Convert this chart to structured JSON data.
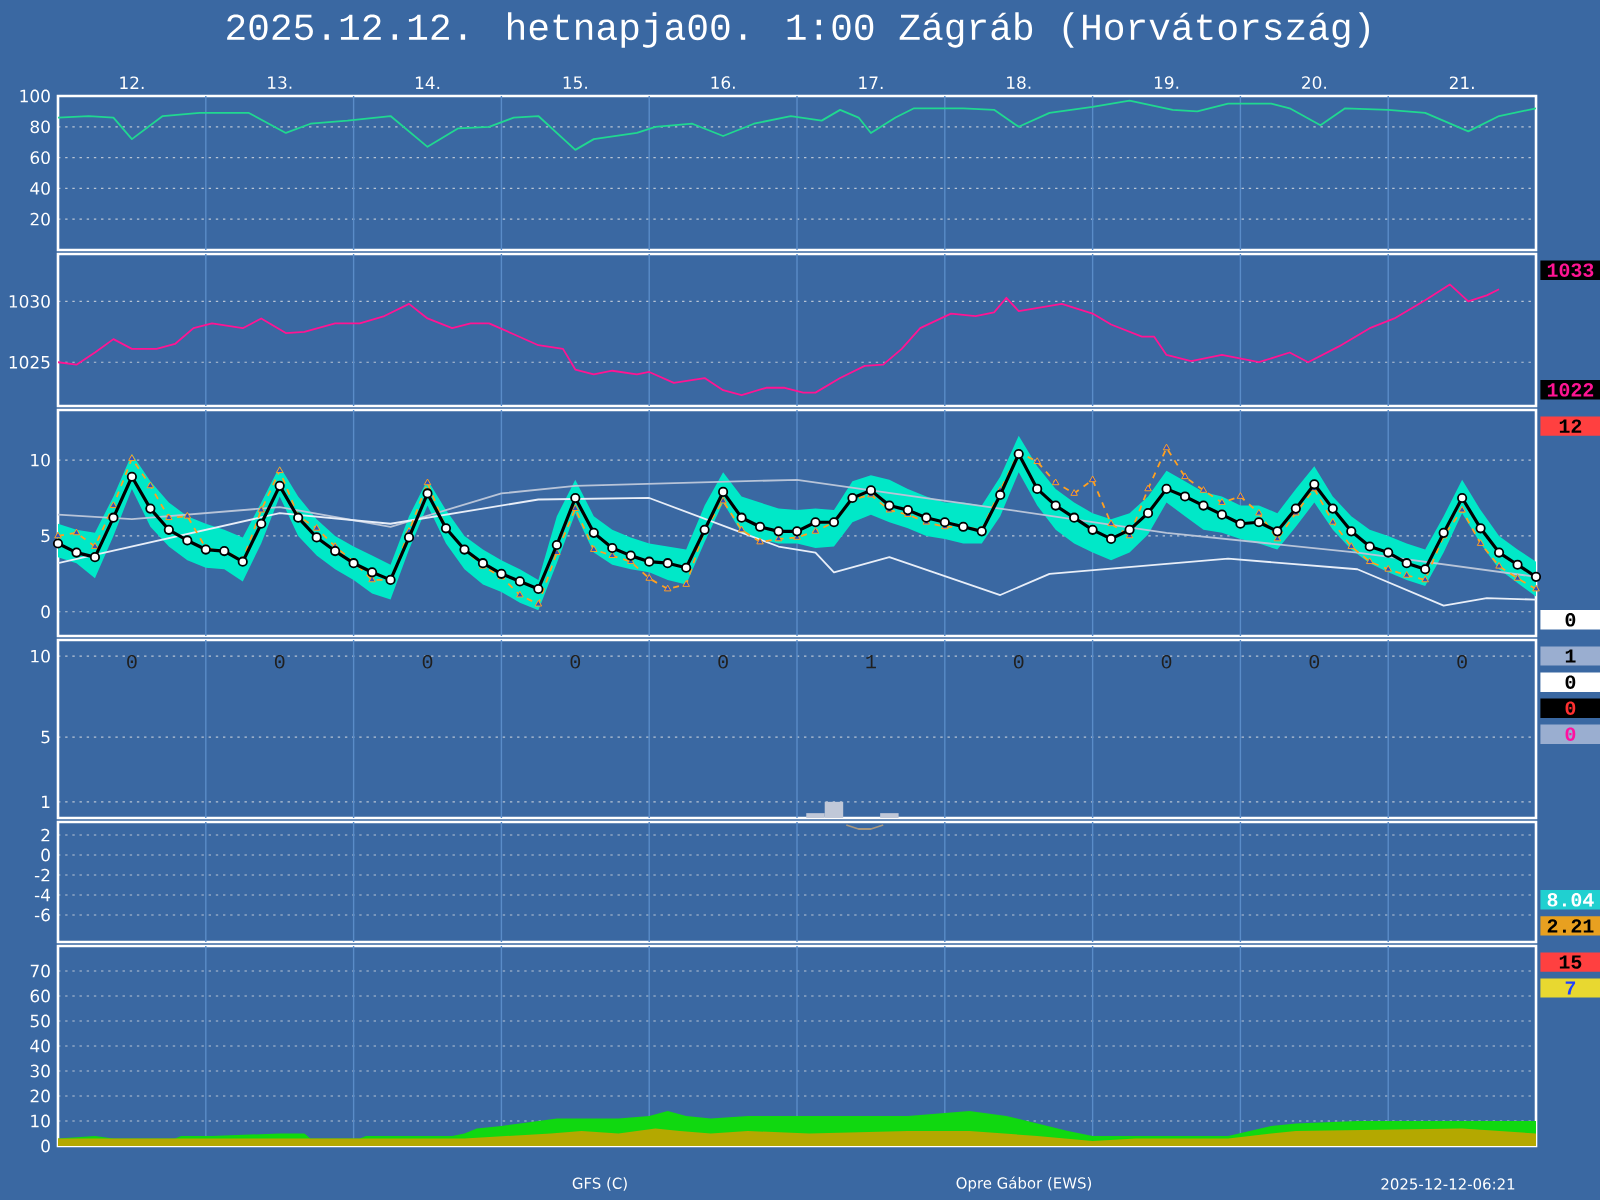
{
  "chart_data": [
    {
      "type": "line",
      "title": "2025.12.12. hetnapja00. 1:00   Zágráb (Horvátország)",
      "xlim": [
        "2025-12-12T00:00",
        "2025-12-22T00:00"
      ],
      "xticks": [
        {
          "value": "2025-12-12T12:00",
          "label": "12."
        },
        {
          "value": "2025-12-13T12:00",
          "label": "13."
        },
        {
          "value": "2025-12-14T12:00",
          "label": "14."
        },
        {
          "value": "2025-12-15T12:00",
          "label": "15."
        },
        {
          "value": "2025-12-16T12:00",
          "label": "16."
        },
        {
          "value": "2025-12-17T12:00",
          "label": "17."
        },
        {
          "value": "2025-12-18T12:00",
          "label": "18."
        },
        {
          "value": "2025-12-19T12:00",
          "label": "19."
        },
        {
          "value": "2025-12-20T12:00",
          "label": "20."
        },
        {
          "value": "2025-12-21T12:00",
          "label": "21."
        }
      ],
      "ylim": [
        0,
        100
      ],
      "yticks": [
        20,
        40,
        60,
        80,
        100
      ],
      "grid": "y",
      "x": [
        "2025-12-12T00:00",
        "2025-12-12T05:00",
        "2025-12-12T09:00",
        "2025-12-12T12:00",
        "2025-12-12T17:00",
        "2025-12-12T23:00",
        "2025-12-13T07:00",
        "2025-12-13T13:00",
        "2025-12-13T17:00",
        "2025-12-13T23:00",
        "2025-12-14T06:00",
        "2025-12-14T12:00",
        "2025-12-14T17:00",
        "2025-12-14T22:00",
        "2025-12-15T02:00",
        "2025-12-15T06:00",
        "2025-12-15T12:00",
        "2025-12-15T15:00",
        "2025-12-15T22:00",
        "2025-12-16T01:00",
        "2025-12-16T07:00",
        "2025-12-16T12:00",
        "2025-12-16T17:00",
        "2025-12-16T23:00",
        "2025-12-17T04:00",
        "2025-12-17T07:00",
        "2025-12-17T10:00",
        "2025-12-17T12:00",
        "2025-12-17T16:00",
        "2025-12-17T19:00",
        "2025-12-18T03:00",
        "2025-12-18T08:00",
        "2025-12-18T12:00",
        "2025-12-18T17:00",
        "2025-12-19T00:00",
        "2025-12-19T06:00",
        "2025-12-19T13:00",
        "2025-12-19T17:00",
        "2025-12-19T22:00",
        "2025-12-20T05:00",
        "2025-12-20T08:00",
        "2025-12-20T13:00",
        "2025-12-20T17:00",
        "2025-12-21T00:00",
        "2025-12-21T06:00",
        "2025-12-21T13:00",
        "2025-12-21T18:00",
        "2025-12-22T00:00"
      ],
      "values": [
        86,
        87,
        86,
        72,
        87,
        89,
        89,
        76,
        82,
        84,
        87,
        67,
        79,
        80,
        86,
        87,
        65,
        72,
        76,
        80,
        82,
        74,
        82,
        87,
        84,
        91,
        86,
        76,
        86,
        92,
        92,
        91,
        80,
        89,
        93,
        97,
        91,
        90,
        95,
        95,
        92,
        81,
        92,
        91,
        89,
        77,
        87,
        92
      ],
      "color": "#20d890",
      "ref_lines": [
        {
          "axis": "x",
          "value": "2025-12-13",
          "color": "#5a8cc8"
        },
        {
          "axis": "x",
          "value": "2025-12-14",
          "color": "#5a8cc8"
        },
        {
          "axis": "x",
          "value": "2025-12-15",
          "color": "#5a8cc8"
        },
        {
          "axis": "x",
          "value": "2025-12-16",
          "color": "#5a8cc8"
        },
        {
          "axis": "x",
          "value": "2025-12-17",
          "color": "#5a8cc8"
        },
        {
          "axis": "x",
          "value": "2025-12-18",
          "color": "#5a8cc8"
        },
        {
          "axis": "x",
          "value": "2025-12-19",
          "color": "#5a8cc8"
        },
        {
          "axis": "x",
          "value": "2025-12-20",
          "color": "#5a8cc8"
        },
        {
          "axis": "x",
          "value": "2025-12-21",
          "color": "#5a8cc8"
        }
      ],
      "annotations": [
        "GFS (C)",
        "Opre Gábor (EWS)",
        "2025-12-12-06:21"
      ]
    },
    {
      "type": "line",
      "xlim": [
        "2025-12-12T00:00",
        "2025-12-22T00:00"
      ],
      "tick_labels": "y",
      "ylim": [
        1021.4,
        1033.9
      ],
      "yticks": [
        1025,
        1030
      ],
      "grid": "y",
      "x": [
        "2025-12-12T00:00",
        "2025-12-12T03:00",
        "2025-12-12T06:00",
        "2025-12-12T09:00",
        "2025-12-12T12:00",
        "2025-12-12T16:00",
        "2025-12-12T19:00",
        "2025-12-12T22:00",
        "2025-12-13T01:00",
        "2025-12-13T06:00",
        "2025-12-13T09:00",
        "2025-12-13T13:00",
        "2025-12-13T16:00",
        "2025-12-13T21:00",
        "2025-12-14T01:00",
        "2025-12-14T05:00",
        "2025-12-14T09:00",
        "2025-12-14T12:00",
        "2025-12-14T16:00",
        "2025-12-14T19:00",
        "2025-12-14T22:00",
        "2025-12-15T02:00",
        "2025-12-15T06:00",
        "2025-12-15T10:00",
        "2025-12-15T12:00",
        "2025-12-15T15:00",
        "2025-12-15T18:00",
        "2025-12-15T22:00",
        "2025-12-16T00:00",
        "2025-12-16T04:00",
        "2025-12-16T09:00",
        "2025-12-16T12:00",
        "2025-12-16T15:00",
        "2025-12-16T19:00",
        "2025-12-16T22:00",
        "2025-12-17T01:00",
        "2025-12-17T03:00",
        "2025-12-17T07:00",
        "2025-12-17T11:00",
        "2025-12-17T14:00",
        "2025-12-17T17:00",
        "2025-12-17T20:00",
        "2025-12-18T01:00",
        "2025-12-18T05:00",
        "2025-12-18T08:00",
        "2025-12-18T10:00",
        "2025-12-18T12:00",
        "2025-12-18T19:00",
        "2025-12-19T00:00",
        "2025-12-19T03:00",
        "2025-12-19T08:00",
        "2025-12-19T10:00",
        "2025-12-19T12:00",
        "2025-12-19T16:00",
        "2025-12-19T21:00",
        "2025-12-20T03:00",
        "2025-12-20T08:00",
        "2025-12-20T11:00",
        "2025-12-20T16:00",
        "2025-12-20T21:00",
        "2025-12-21T01:00",
        "2025-12-21T06:00",
        "2025-12-21T10:00",
        "2025-12-21T13:00",
        "2025-12-21T16:00",
        "2025-12-21T18:00"
      ],
      "values": [
        1025,
        1024.8,
        1025.8,
        1026.9,
        1026.1,
        1026.1,
        1026.5,
        1027.8,
        1028.2,
        1027.8,
        1028.6,
        1027.4,
        1027.5,
        1028.2,
        1028.2,
        1028.8,
        1029.8,
        1028.6,
        1027.8,
        1028.2,
        1028.2,
        1027.3,
        1026.4,
        1026.1,
        1024.4,
        1024,
        1024.3,
        1024,
        1024.2,
        1023.3,
        1023.7,
        1022.7,
        1022.3,
        1022.9,
        1022.9,
        1022.5,
        1022.5,
        1023.7,
        1024.7,
        1024.8,
        1026.1,
        1027.8,
        1029,
        1028.8,
        1029.1,
        1030.3,
        1029.2,
        1029.8,
        1029,
        1028.1,
        1027.1,
        1027.1,
        1025.6,
        1025.1,
        1025.6,
        1025,
        1025.8,
        1025,
        1026.3,
        1027.8,
        1028.6,
        1030.1,
        1031.4,
        1030,
        1030.5,
        1031
      ],
      "color": "#ff1493",
      "ref_lines": [
        {
          "axis": "x",
          "value": "2025-12-13",
          "color": "#5a8cc8"
        },
        {
          "axis": "x",
          "value": "2025-12-14",
          "color": "#5a8cc8"
        },
        {
          "axis": "x",
          "value": "2025-12-15",
          "color": "#5a8cc8"
        },
        {
          "axis": "x",
          "value": "2025-12-16",
          "color": "#5a8cc8"
        },
        {
          "axis": "x",
          "value": "2025-12-17",
          "color": "#5a8cc8"
        },
        {
          "axis": "x",
          "value": "2025-12-18",
          "color": "#5a8cc8"
        },
        {
          "axis": "x",
          "value": "2025-12-19",
          "color": "#5a8cc8"
        },
        {
          "axis": "x",
          "value": "2025-12-20",
          "color": "#5a8cc8"
        },
        {
          "axis": "x",
          "value": "2025-12-21",
          "color": "#5a8cc8"
        }
      ],
      "annotations": [
        "1033",
        "1022"
      ]
    },
    {
      "type": "line",
      "xlim": [
        "2025-12-12T00:00",
        "2025-12-22T00:00"
      ],
      "tick_labels": "y",
      "ylim": [
        -1.6,
        13.3
      ],
      "yticks": [
        0,
        5,
        10
      ],
      "grid": "y",
      "x": [
        "2025-12-12T00:00",
        "2025-12-12T03:00",
        "2025-12-12T06:00",
        "2025-12-12T09:00",
        "2025-12-12T12:00",
        "2025-12-12T15:00",
        "2025-12-12T18:00",
        "2025-12-12T21:00",
        "2025-12-13T00:00",
        "2025-12-13T03:00",
        "2025-12-13T06:00",
        "2025-12-13T09:00",
        "2025-12-13T12:00",
        "2025-12-13T15:00",
        "2025-12-13T18:00",
        "2025-12-13T21:00",
        "2025-12-14T00:00",
        "2025-12-14T03:00",
        "2025-12-14T06:00",
        "2025-12-14T09:00",
        "2025-12-14T12:00",
        "2025-12-14T15:00",
        "2025-12-14T18:00",
        "2025-12-14T21:00",
        "2025-12-15T00:00",
        "2025-12-15T03:00",
        "2025-12-15T06:00",
        "2025-12-15T09:00",
        "2025-12-15T12:00",
        "2025-12-15T15:00",
        "2025-12-15T18:00",
        "2025-12-15T21:00",
        "2025-12-16T00:00",
        "2025-12-16T03:00",
        "2025-12-16T06:00",
        "2025-12-16T09:00",
        "2025-12-16T12:00",
        "2025-12-16T15:00",
        "2025-12-16T18:00",
        "2025-12-16T21:00",
        "2025-12-17T00:00",
        "2025-12-17T03:00",
        "2025-12-17T06:00",
        "2025-12-17T09:00",
        "2025-12-17T12:00",
        "2025-12-17T15:00",
        "2025-12-17T18:00",
        "2025-12-17T21:00",
        "2025-12-18T00:00",
        "2025-12-18T03:00",
        "2025-12-18T06:00",
        "2025-12-18T09:00",
        "2025-12-18T12:00",
        "2025-12-18T15:00",
        "2025-12-18T18:00",
        "2025-12-18T21:00",
        "2025-12-19T00:00",
        "2025-12-19T03:00",
        "2025-12-19T06:00",
        "2025-12-19T09:00",
        "2025-12-19T12:00",
        "2025-12-19T15:00",
        "2025-12-19T18:00",
        "2025-12-19T21:00",
        "2025-12-20T00:00",
        "2025-12-20T03:00",
        "2025-12-20T06:00",
        "2025-12-20T09:00",
        "2025-12-20T12:00",
        "2025-12-20T15:00",
        "2025-12-20T18:00",
        "2025-12-20T21:00",
        "2025-12-21T00:00",
        "2025-12-21T03:00",
        "2025-12-21T06:00",
        "2025-12-21T09:00",
        "2025-12-21T12:00",
        "2025-12-21T15:00",
        "2025-12-21T18:00",
        "2025-12-21T21:00",
        "2025-12-22T00:00"
      ],
      "series": [
        {
          "color": "#b8c4d8",
          "marker": "none",
          "line_style": "solid",
          "x": [
            "2025-12-12T00:00",
            "2025-12-12T12:00",
            "2025-12-13T12:00",
            "2025-12-14T06:00",
            "2025-12-15T00:00",
            "2025-12-15T12:00",
            "2025-12-17T00:00",
            "2025-12-18T09:00",
            "2025-12-19T12:00",
            "2025-12-20T19:00",
            "2025-12-22T00:00"
          ],
          "values": [
            6.4,
            6.1,
            6.9,
            5.6,
            7.8,
            8.3,
            8.7,
            6.8,
            5.2,
            3.9,
            2.3
          ]
        },
        {
          "color": "#e8eef8",
          "marker": "none",
          "line_style": "solid",
          "x": [
            "2025-12-12T00:00",
            "2025-12-13T12:00",
            "2025-12-14T06:00",
            "2025-12-15T06:00",
            "2025-12-16T00:00",
            "2025-12-16T21:00",
            "2025-12-17T03:00",
            "2025-12-17T06:00",
            "2025-12-17T15:00",
            "2025-12-18T09:00",
            "2025-12-18T17:00",
            "2025-12-19T22:00",
            "2025-12-20T19:00",
            "2025-12-21T09:00",
            "2025-12-21T16:00",
            "2025-12-22T00:00"
          ],
          "values": [
            3.2,
            6.5,
            5.8,
            7.4,
            7.5,
            4.3,
            3.9,
            2.6,
            3.6,
            1.1,
            2.5,
            3.5,
            2.8,
            0.4,
            0.9,
            0.8
          ]
        },
        {
          "color": "#ffa020",
          "marker": "triangle",
          "line_style": "dashed",
          "values": [
            5.0,
            5.2,
            4.3,
            7.0,
            10.1,
            8.3,
            6.2,
            6.3,
            4.2,
            4.0,
            3.4,
            6.7,
            9.3,
            6.3,
            5.5,
            4.3,
            3.3,
            2.1,
            2.1,
            5.3,
            8.5,
            5.5,
            4.1,
            3.0,
            2.3,
            1.1,
            0.5,
            3.9,
            6.8,
            4.1,
            3.7,
            3.3,
            2.2,
            1.5,
            1.8,
            5.4,
            7.3,
            5.4,
            4.6,
            4.8,
            4.9,
            5.3,
            5.9,
            7.4,
            7.7,
            6.7,
            6.4,
            5.9,
            5.6,
            5.6,
            5.4,
            8.0,
            10.5,
            9.9,
            8.5,
            7.8,
            8.7,
            5.8,
            5.0,
            8.1,
            10.8,
            8.9,
            8.0,
            7.2,
            7.6,
            6.5,
            4.8,
            6.5,
            8.1,
            5.9,
            4.3,
            3.3,
            2.8,
            2.4,
            2.1,
            5.0,
            6.7,
            4.5,
            3.0,
            2.2,
            1.5
          ]
        },
        {
          "color": "#000000",
          "marker": "circle",
          "line_style": "solid",
          "values": [
            4.5,
            3.9,
            3.6,
            6.2,
            8.9,
            6.8,
            5.4,
            4.7,
            4.1,
            4.0,
            3.3,
            5.8,
            8.3,
            6.2,
            4.9,
            4.0,
            3.2,
            2.6,
            2.1,
            4.9,
            7.8,
            5.5,
            4.1,
            3.2,
            2.5,
            2.0,
            1.5,
            4.4,
            7.5,
            5.2,
            4.2,
            3.7,
            3.3,
            3.2,
            2.9,
            5.4,
            7.9,
            6.2,
            5.6,
            5.3,
            5.3,
            5.9,
            5.9,
            7.5,
            8.0,
            7.0,
            6.7,
            6.2,
            5.9,
            5.6,
            5.3,
            7.7,
            10.4,
            8.1,
            7.0,
            6.2,
            5.4,
            4.8,
            5.4,
            6.5,
            8.1,
            7.6,
            7.0,
            6.4,
            5.8,
            5.9,
            5.3,
            6.8,
            8.4,
            6.8,
            5.3,
            4.3,
            3.9,
            3.2,
            2.8,
            5.2,
            7.5,
            5.5,
            3.9,
            3.1,
            2.3
          ],
          "upper": [
            5.8,
            5.4,
            5.2,
            7.6,
            10.4,
            8.6,
            7.2,
            6.3,
            5.8,
            5.4,
            4.9,
            7.2,
            9.6,
            7.6,
            6.1,
            5.0,
            4.3,
            3.7,
            3.1,
            6.3,
            8.7,
            6.7,
            5.0,
            4.1,
            3.4,
            2.8,
            2.1,
            6.3,
            8.7,
            6.3,
            5.4,
            4.9,
            4.5,
            4.3,
            4.1,
            7.0,
            9.2,
            7.6,
            7.2,
            6.8,
            6.7,
            6.8,
            6.7,
            8.6,
            9.0,
            8.7,
            8.1,
            7.6,
            7.2,
            7.2,
            7.0,
            8.9,
            11.6,
            9.6,
            8.1,
            7.2,
            6.5,
            6.1,
            6.5,
            7.6,
            9.3,
            8.6,
            7.9,
            7.6,
            7.0,
            7.0,
            6.5,
            8.1,
            9.6,
            7.6,
            6.3,
            5.4,
            5.0,
            4.5,
            4.1,
            6.3,
            8.7,
            6.7,
            5.0,
            4.1,
            3.3
          ],
          "lower": [
            3.6,
            3.2,
            2.2,
            5.0,
            8.1,
            5.6,
            4.3,
            3.4,
            2.9,
            2.8,
            2.0,
            4.5,
            7.6,
            5.0,
            3.7,
            2.8,
            2.1,
            1.2,
            0.8,
            4.1,
            7.0,
            4.5,
            2.8,
            1.8,
            1.3,
            0.6,
            0.1,
            3.2,
            6.5,
            3.9,
            3.1,
            2.8,
            2.6,
            2.1,
            1.8,
            4.6,
            7.2,
            5.2,
            4.8,
            4.5,
            4.5,
            4.2,
            4.3,
            5.9,
            6.4,
            5.9,
            5.5,
            5.0,
            4.8,
            4.5,
            4.5,
            6.3,
            9.2,
            7.0,
            5.4,
            4.5,
            3.9,
            3.4,
            3.9,
            5.1,
            7.2,
            6.3,
            5.4,
            5.2,
            4.8,
            4.5,
            4.1,
            5.6,
            7.2,
            5.4,
            4.1,
            3.2,
            2.6,
            2.1,
            1.7,
            3.9,
            6.5,
            4.5,
            2.8,
            1.9,
            1.0
          ]
        }
      ],
      "ref_lines": [
        {
          "axis": "x",
          "value": "2025-12-13",
          "color": "#5a8cc8"
        },
        {
          "axis": "x",
          "value": "2025-12-14",
          "color": "#5a8cc8"
        },
        {
          "axis": "x",
          "value": "2025-12-15",
          "color": "#5a8cc8"
        },
        {
          "axis": "x",
          "value": "2025-12-16",
          "color": "#5a8cc8"
        },
        {
          "axis": "x",
          "value": "2025-12-17",
          "color": "#5a8cc8"
        },
        {
          "axis": "x",
          "value": "2025-12-18",
          "color": "#5a8cc8"
        },
        {
          "axis": "x",
          "value": "2025-12-19",
          "color": "#5a8cc8"
        },
        {
          "axis": "x",
          "value": "2025-12-20",
          "color": "#5a8cc8"
        },
        {
          "axis": "x",
          "value": "2025-12-21",
          "color": "#5a8cc8"
        }
      ],
      "annotations": [
        "12",
        "0"
      ]
    },
    {
      "type": "bar",
      "xlim": [
        "2025-12-12T00:00",
        "2025-12-22T00:00"
      ],
      "tick_labels": "y",
      "ylim": [
        0,
        11
      ],
      "yticks": [
        1,
        5,
        10
      ],
      "grid": "y",
      "x": [
        "2025-12-17T03:00",
        "2025-12-17T06:00",
        "2025-12-17T15:00"
      ],
      "values": [
        0.3,
        1,
        0.3
      ],
      "color": "#c0c8d8",
      "ref_lines": [
        {
          "axis": "x",
          "value": "2025-12-13",
          "color": "#5a8cc8"
        },
        {
          "axis": "x",
          "value": "2025-12-14",
          "color": "#5a8cc8"
        },
        {
          "axis": "x",
          "value": "2025-12-15",
          "color": "#5a8cc8"
        },
        {
          "axis": "x",
          "value": "2025-12-16",
          "color": "#5a8cc8"
        },
        {
          "axis": "x",
          "value": "2025-12-17",
          "color": "#5a8cc8"
        },
        {
          "axis": "x",
          "value": "2025-12-18",
          "color": "#5a8cc8"
        },
        {
          "axis": "x",
          "value": "2025-12-19",
          "color": "#5a8cc8"
        },
        {
          "axis": "x",
          "value": "2025-12-20",
          "color": "#5a8cc8"
        },
        {
          "axis": "x",
          "value": "2025-12-21",
          "color": "#5a8cc8"
        }
      ],
      "annotations": [
        "0",
        "0",
        "0",
        "0",
        "0",
        "1",
        "0",
        "0",
        "0",
        "0",
        "1",
        "0",
        "0",
        "0"
      ]
    },
    {
      "type": "line",
      "xlim": [
        "2025-12-12T00:00",
        "2025-12-22T00:00"
      ],
      "tick_labels": "y",
      "ylim": [
        -8.7,
        3.3
      ],
      "yticks": [
        -6,
        -4,
        -2,
        0,
        2
      ],
      "grid": "y",
      "x": [
        "2025-12-17T08:00",
        "2025-12-17T10:00",
        "2025-12-17T12:00",
        "2025-12-17T14:00"
      ],
      "values": [
        3.0,
        2.6,
        2.6,
        3.0
      ],
      "color": "#a89880",
      "ref_lines": [
        {
          "axis": "x",
          "value": "2025-12-13",
          "color": "#5a8cc8"
        },
        {
          "axis": "x",
          "value": "2025-12-14",
          "color": "#5a8cc8"
        },
        {
          "axis": "x",
          "value": "2025-12-15",
          "color": "#5a8cc8"
        },
        {
          "axis": "x",
          "value": "2025-12-16",
          "color": "#5a8cc8"
        },
        {
          "axis": "x",
          "value": "2025-12-17",
          "color": "#5a8cc8"
        },
        {
          "axis": "x",
          "value": "2025-12-18",
          "color": "#5a8cc8"
        },
        {
          "axis": "x",
          "value": "2025-12-19",
          "color": "#5a8cc8"
        },
        {
          "axis": "x",
          "value": "2025-12-20",
          "color": "#5a8cc8"
        },
        {
          "axis": "x",
          "value": "2025-12-21",
          "color": "#5a8cc8"
        }
      ],
      "annotations": [
        "8.04",
        "2.21"
      ]
    },
    {
      "type": "area",
      "xlim": [
        "2025-12-12T00:00",
        "2025-12-22T00:00"
      ],
      "tick_labels": "y",
      "ylim": [
        0,
        80
      ],
      "yticks": [
        0,
        10,
        20,
        30,
        40,
        50,
        60,
        70
      ],
      "grid": "y",
      "series": [
        {
          "color": "#10d810",
          "x": [
            "2025-12-12T00:00",
            "2025-12-12T06:00",
            "2025-12-12T09:00",
            "2025-12-12T19:00",
            "2025-12-12T20:00",
            "2025-12-13T01:00",
            "2025-12-13T12:00",
            "2025-12-13T16:00",
            "2025-12-13T17:00",
            "2025-12-14T01:00",
            "2025-12-14T02:00",
            "2025-12-14T16:00",
            "2025-12-14T18:00",
            "2025-12-14T20:00",
            "2025-12-15T00:00",
            "2025-12-15T03:00",
            "2025-12-15T09:00",
            "2025-12-15T19:00",
            "2025-12-16T00:00",
            "2025-12-16T03:00",
            "2025-12-16T06:00",
            "2025-12-16T10:00",
            "2025-12-16T16:00",
            "2025-12-16T21:00",
            "2025-12-17T07:00",
            "2025-12-17T12:00",
            "2025-12-17T18:00",
            "2025-12-18T04:00",
            "2025-12-18T10:00",
            "2025-12-18T15:00",
            "2025-12-18T20:00",
            "2025-12-19T00:00",
            "2025-12-19T07:00",
            "2025-12-19T12:00",
            "2025-12-19T22:00",
            "2025-12-20T05:00",
            "2025-12-20T09:00",
            "2025-12-20T19:00",
            "2025-12-21T06:00",
            "2025-12-22T00:00"
          ],
          "values": [
            3,
            4,
            3,
            3,
            4,
            4,
            5,
            5,
            3,
            3,
            4,
            4,
            5,
            7,
            8,
            9,
            11,
            11,
            12,
            14,
            12,
            11,
            12,
            12,
            12,
            12,
            12,
            14,
            12,
            9,
            6,
            4,
            4,
            4,
            4,
            8,
            9,
            10,
            10,
            10
          ]
        },
        {
          "color": "#b4a800",
          "x": [
            "2025-12-12T00:00",
            "2025-12-14T16:00",
            "2025-12-14T18:00",
            "2025-12-15T01:00",
            "2025-12-15T08:00",
            "2025-12-15T13:00",
            "2025-12-15T19:00",
            "2025-12-16T01:00",
            "2025-12-16T05:00",
            "2025-12-16T10:00",
            "2025-12-16T16:00",
            "2025-12-17T02:00",
            "2025-12-17T18:00",
            "2025-12-18T04:00",
            "2025-12-18T15:00",
            "2025-12-19T00:00",
            "2025-12-19T07:00",
            "2025-12-19T12:00",
            "2025-12-19T22:00",
            "2025-12-20T05:00",
            "2025-12-20T09:00",
            "2025-12-21T12:00",
            "2025-12-22T00:00"
          ],
          "values": [
            3,
            3,
            3,
            4,
            5,
            6,
            5,
            7,
            6,
            5,
            6,
            5,
            6,
            6,
            4,
            2,
            3,
            3,
            3,
            5,
            6,
            7,
            5
          ]
        }
      ],
      "ref_lines": [
        {
          "axis": "x",
          "value": "2025-12-13",
          "color": "#5a8cc8"
        },
        {
          "axis": "x",
          "value": "2025-12-14",
          "color": "#5a8cc8"
        },
        {
          "axis": "x",
          "value": "2025-12-15",
          "color": "#5a8cc8"
        },
        {
          "axis": "x",
          "value": "2025-12-16",
          "color": "#5a8cc8"
        },
        {
          "axis": "x",
          "value": "2025-12-17",
          "color": "#5a8cc8"
        },
        {
          "axis": "x",
          "value": "2025-12-18",
          "color": "#5a8cc8"
        },
        {
          "axis": "x",
          "value": "2025-12-19",
          "color": "#5a8cc8"
        },
        {
          "axis": "x",
          "value": "2025-12-20",
          "color": "#5a8cc8"
        },
        {
          "axis": "x",
          "value": "2025-12-21",
          "color": "#5a8cc8"
        }
      ],
      "annotations": [
        "15",
        "7"
      ]
    }
  ]
}
